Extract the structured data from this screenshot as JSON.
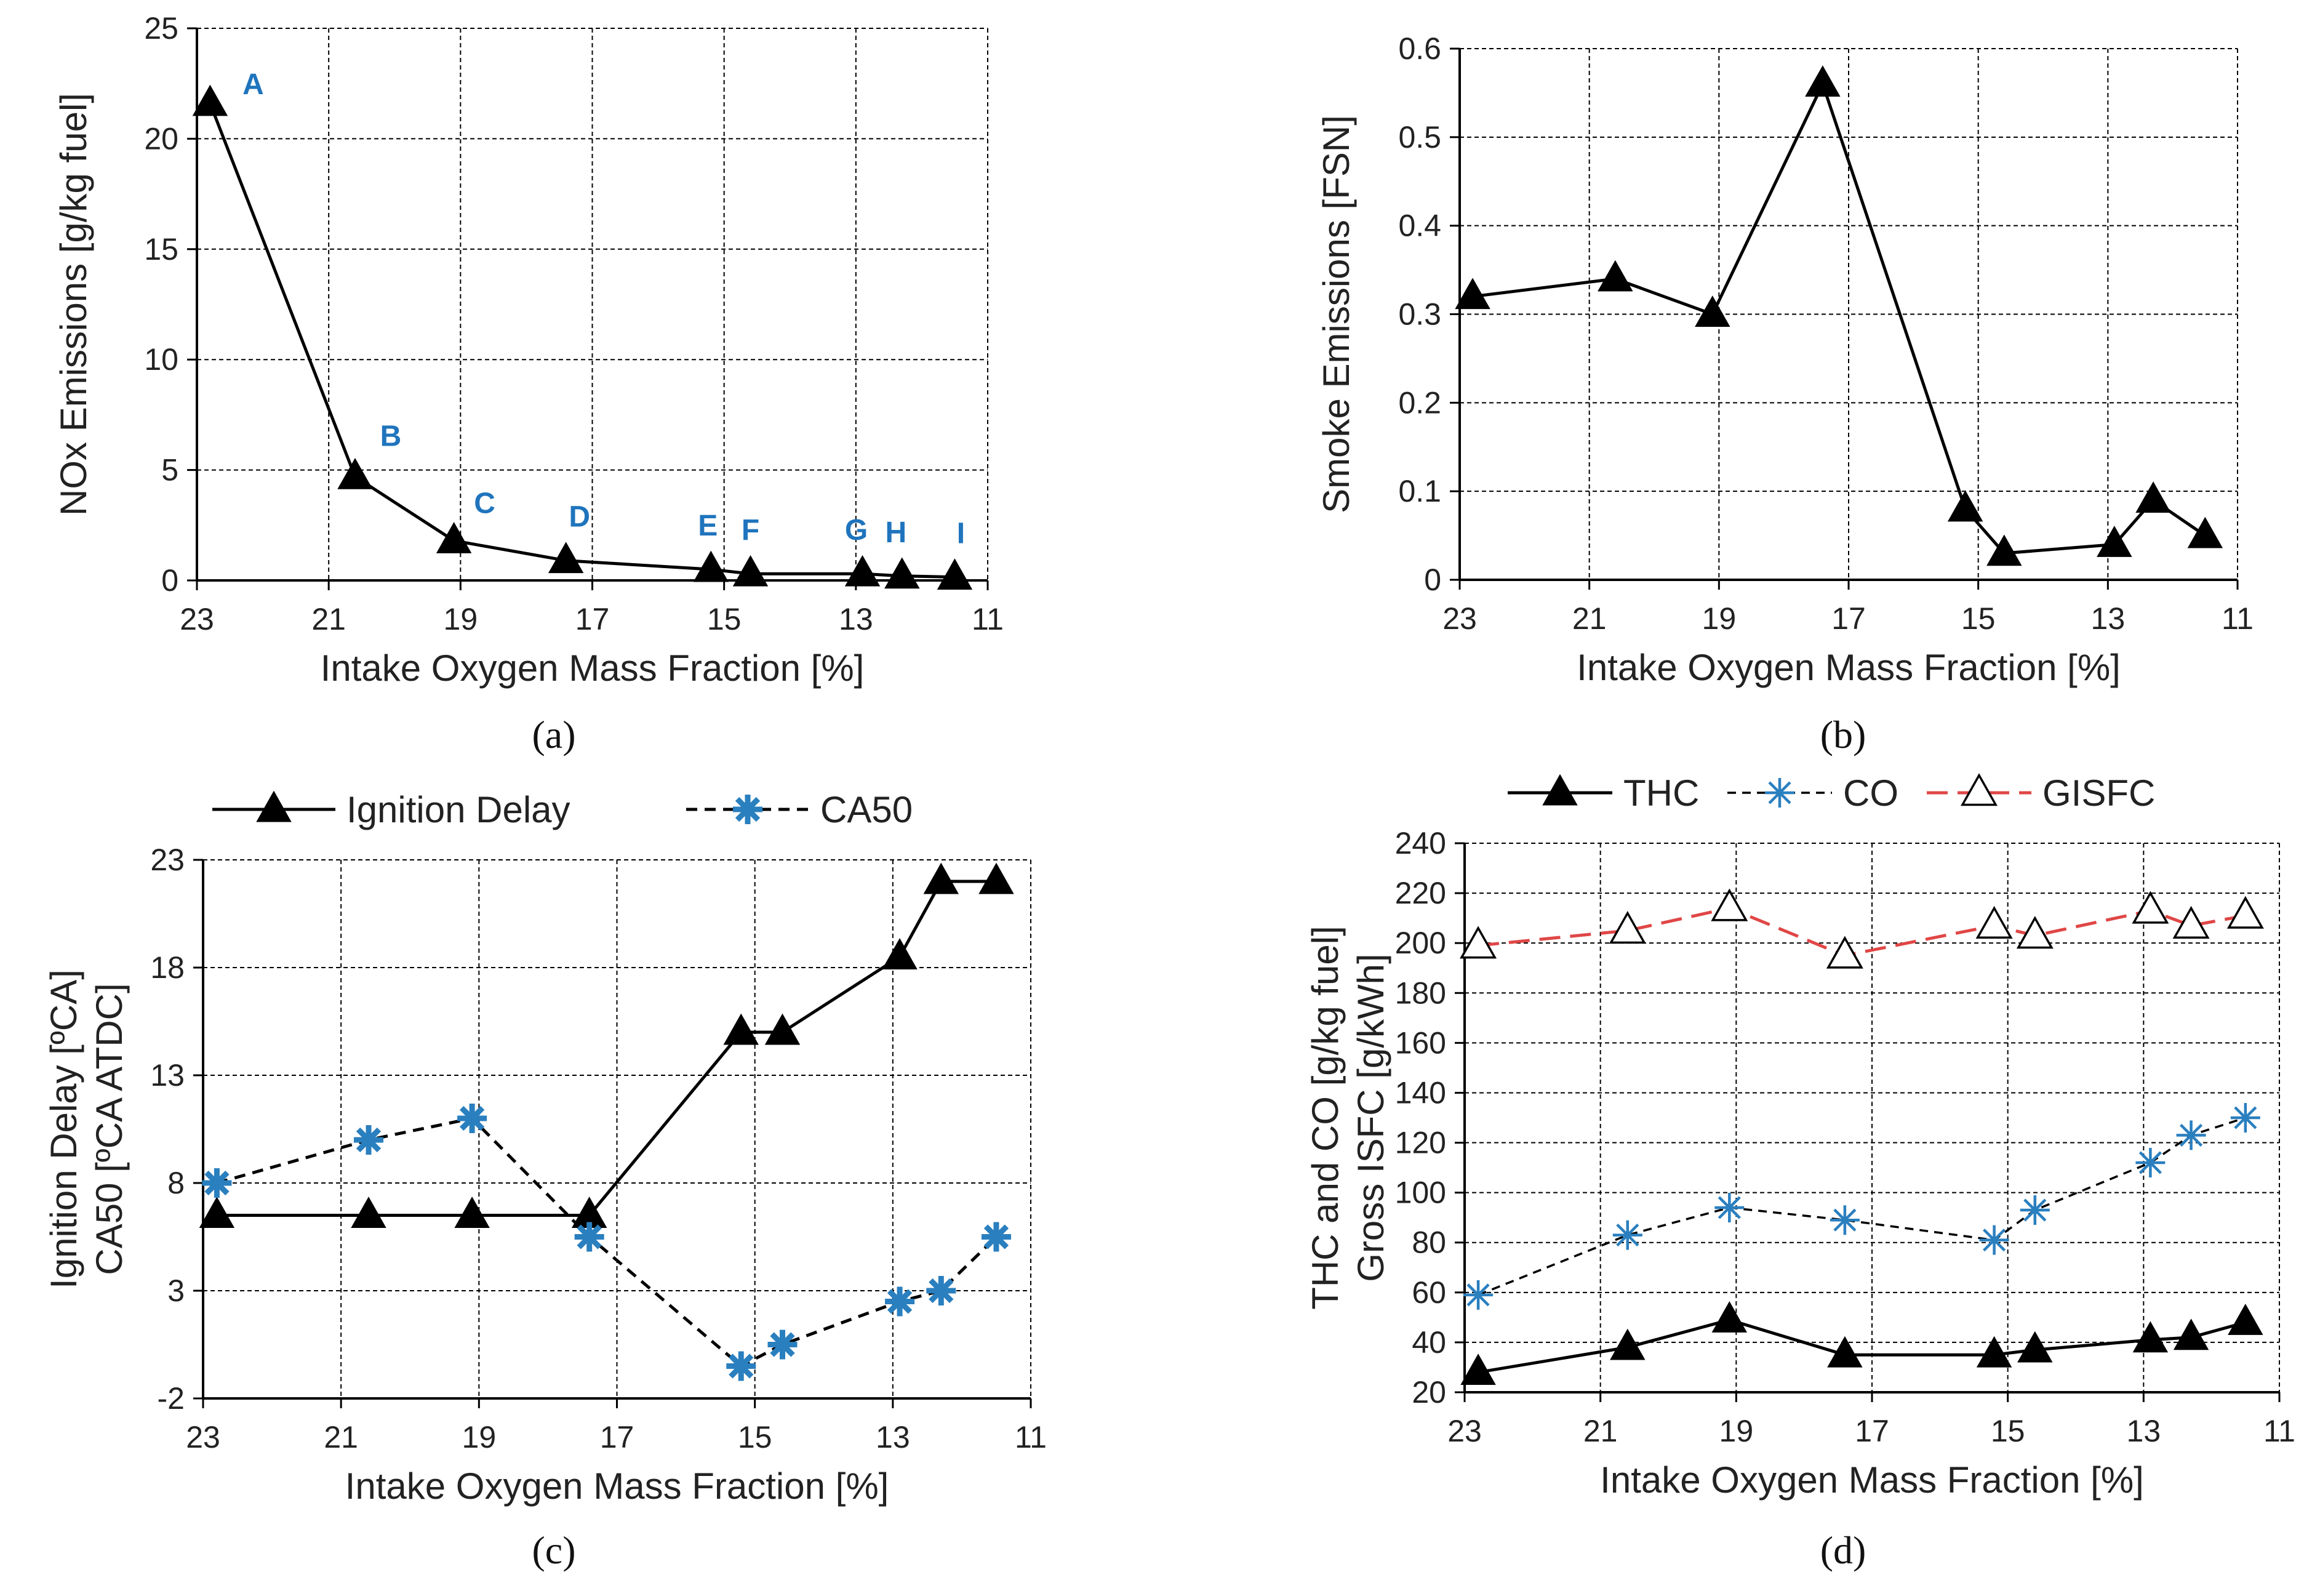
{
  "colors": {
    "black_series": "#000000",
    "blue_series": "#2a7fbf",
    "red_series": "#e04646",
    "label_blue": "#1f74bd",
    "grid": "#000000"
  },
  "chart_data": [
    {
      "id": "a",
      "type": "line",
      "caption": "(a)",
      "xlabel": "Intake Oxygen Mass Fraction [%]",
      "ylabel": [
        "NOx Emissions [g/kg fuel]"
      ],
      "xlim": [
        23,
        11
      ],
      "xticks": [
        23,
        21,
        19,
        17,
        15,
        13,
        11
      ],
      "ylim": [
        0,
        25
      ],
      "yticks": [
        0,
        5,
        10,
        15,
        20,
        25
      ],
      "grid": true,
      "series": [
        {
          "name": "NOx",
          "style": "solid-triangle",
          "x": [
            22.8,
            20.6,
            19.1,
            17.4,
            15.2,
            14.6,
            12.9,
            12.3,
            11.5
          ],
          "y": [
            21.6,
            4.7,
            1.8,
            0.9,
            0.5,
            0.3,
            0.3,
            0.2,
            0.15
          ]
        }
      ],
      "point_labels": [
        "A",
        "B",
        "C",
        "D",
        "E",
        "F",
        "G",
        "H",
        "I"
      ]
    },
    {
      "id": "b",
      "type": "line",
      "caption": "(b)",
      "xlabel": "Intake Oxygen Mass Fraction [%]",
      "ylabel": [
        "Smoke Emissions [FSN]"
      ],
      "xlim": [
        23,
        11
      ],
      "xticks": [
        23,
        21,
        19,
        17,
        15,
        13,
        11
      ],
      "ylim": [
        0,
        0.6
      ],
      "yticks": [
        0,
        0.1,
        0.2,
        0.3,
        0.4,
        0.5,
        0.6
      ],
      "grid": true,
      "series": [
        {
          "name": "Smoke",
          "style": "solid-triangle",
          "x": [
            22.8,
            20.6,
            19.1,
            17.4,
            15.2,
            14.6,
            12.9,
            12.3,
            11.5
          ],
          "y": [
            0.32,
            0.34,
            0.3,
            0.56,
            0.08,
            0.03,
            0.04,
            0.09,
            0.05
          ]
        }
      ]
    },
    {
      "id": "c",
      "type": "line",
      "caption": "(c)",
      "xlabel": "Intake Oxygen Mass Fraction [%]",
      "ylabel": [
        "Ignition Delay [ºCA]",
        "CA50 [ºCA ATDC]"
      ],
      "xlim": [
        23,
        11
      ],
      "xticks": [
        23,
        21,
        19,
        17,
        15,
        13,
        11
      ],
      "ylim": [
        -2,
        23
      ],
      "yticks": [
        -2,
        3,
        8,
        13,
        18,
        23
      ],
      "grid": true,
      "legend": "top",
      "series": [
        {
          "name": "Ignition Delay",
          "style": "solid-triangle",
          "x": [
            22.8,
            20.6,
            19.1,
            17.4,
            15.2,
            14.6,
            12.9,
            12.3,
            11.5
          ],
          "y": [
            6.5,
            6.5,
            6.5,
            6.5,
            15.0,
            15.0,
            18.5,
            22.0,
            22.0
          ]
        },
        {
          "name": "CA50",
          "style": "dashed-asterisk-bold",
          "x": [
            22.8,
            20.6,
            19.1,
            17.4,
            15.2,
            14.6,
            12.9,
            12.3,
            11.5
          ],
          "y": [
            8.0,
            10.0,
            11.0,
            5.5,
            -0.5,
            0.5,
            2.5,
            3.0,
            5.5
          ]
        }
      ]
    },
    {
      "id": "d",
      "type": "line",
      "caption": "(d)",
      "xlabel": "Intake Oxygen Mass Fraction [%]",
      "ylabel": [
        "THC and CO [g/kg fuel]",
        "Gross ISFC  [g/kWh]"
      ],
      "xlim": [
        23,
        11
      ],
      "xticks": [
        23,
        21,
        19,
        17,
        15,
        13,
        11
      ],
      "ylim": [
        20,
        240
      ],
      "yticks": [
        20,
        40,
        60,
        80,
        100,
        120,
        140,
        160,
        180,
        200,
        220,
        240
      ],
      "grid": true,
      "legend": "top",
      "series": [
        {
          "name": "THC",
          "style": "solid-triangle",
          "x": [
            22.8,
            20.6,
            19.1,
            17.4,
            15.2,
            14.6,
            12.9,
            12.3,
            11.5
          ],
          "y": [
            28,
            38,
            49,
            35,
            35,
            37,
            41,
            42,
            48
          ]
        },
        {
          "name": "CO",
          "style": "dashed-asterisk",
          "x": [
            22.8,
            20.6,
            19.1,
            17.4,
            15.2,
            14.6,
            12.9,
            12.3,
            11.5
          ],
          "y": [
            59,
            83,
            94,
            89,
            81,
            93,
            112,
            123,
            130
          ]
        },
        {
          "name": "GISFC",
          "style": "red-dashed-open-triangle",
          "x": [
            22.8,
            20.6,
            19.1,
            17.4,
            15.2,
            14.6,
            12.9,
            12.3,
            11.5
          ],
          "y": [
            199,
            205,
            214,
            195,
            207,
            203,
            213,
            207,
            211
          ]
        }
      ]
    }
  ]
}
